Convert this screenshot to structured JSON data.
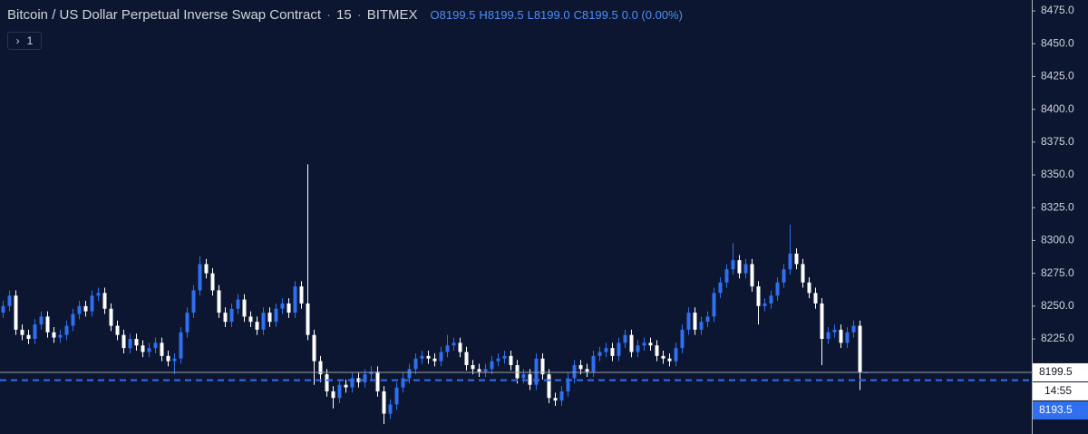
{
  "chart_data": {
    "type": "candlestick",
    "title": "Bitcoin / US Dollar Perpetual Inverse Swap Contract",
    "interval": "15",
    "exchange": "BITMEX",
    "status_line": [
      {
        "label": "O",
        "value": "8199.5"
      },
      {
        "label": "H",
        "value": "8199.5"
      },
      {
        "label": "L",
        "value": "8199.0"
      },
      {
        "label": "C",
        "value": "8199.5"
      }
    ],
    "change": "0.0 (0.00%)",
    "indicators_count": "1",
    "up_color": "#2f6ff0",
    "down_color": "#ffffff",
    "ylim": [
      8152.5,
      8483.3
    ],
    "yticks": [
      {
        "value": 8225,
        "label": "8225.0"
      },
      {
        "value": 8250,
        "label": "8250.0"
      },
      {
        "value": 8275,
        "label": "8275.0"
      },
      {
        "value": 8300,
        "label": "8300.0"
      },
      {
        "value": 8325,
        "label": "8325.0"
      },
      {
        "value": 8350,
        "label": "8350.0"
      },
      {
        "value": 8375,
        "label": "8375.0"
      },
      {
        "value": 8400,
        "label": "8400.0"
      },
      {
        "value": 8425,
        "label": "8425.0"
      },
      {
        "value": 8450,
        "label": "8450.0"
      },
      {
        "value": 8475,
        "label": "8475.0"
      }
    ],
    "last_price": 8199.5,
    "mark_price": 8193.5,
    "countdown": "14:55",
    "open": [
      8245,
      8250,
      8258,
      8232,
      8228,
      8225,
      8236,
      8242,
      8230,
      8226,
      8228,
      8235,
      8244,
      8250,
      8246,
      8258,
      8260,
      8248,
      8235,
      8228,
      8218,
      8225,
      8220,
      8215,
      8218,
      8222,
      8212,
      8208,
      8210,
      8230,
      8245,
      8262,
      8282,
      8275,
      8262,
      8245,
      8238,
      8248,
      8255,
      8242,
      8238,
      8232,
      8245,
      8238,
      8248,
      8252,
      8245,
      8265,
      8252,
      8228,
      8208,
      8198,
      8185,
      8180,
      8190,
      8188,
      8195,
      8192,
      8198,
      8200,
      8185,
      8168,
      8175,
      8188,
      8195,
      8202,
      8210,
      8212,
      8210,
      8208,
      8215,
      8220,
      8222,
      8215,
      8205,
      8202,
      8200,
      8202,
      8208,
      8210,
      8212,
      8205,
      8195,
      8198,
      8190,
      8210,
      8198,
      8180,
      8178,
      8185,
      8195,
      8205,
      8202,
      8200,
      8212,
      8215,
      8218,
      8212,
      8222,
      8228,
      8215,
      8220,
      8222,
      8220,
      8212,
      8210,
      8208,
      8218,
      8232,
      8245,
      8232,
      8238,
      8242,
      8260,
      8268,
      8278,
      8285,
      8275,
      8282,
      8265,
      8250,
      8252,
      8258,
      8268,
      8278,
      8290,
      8282,
      8268,
      8260,
      8252,
      8225,
      8230,
      8232,
      8222,
      8230,
      8235,
      8199.5
    ],
    "high": [
      8254,
      8262,
      8262,
      8236,
      8232,
      8240,
      8246,
      8246,
      8234,
      8232,
      8239,
      8248,
      8254,
      8254,
      8262,
      8264,
      8264,
      8252,
      8239,
      8232,
      8229,
      8229,
      8224,
      8222,
      8226,
      8226,
      8216,
      8214,
      8234,
      8249,
      8266,
      8288,
      8286,
      8279,
      8266,
      8249,
      8252,
      8259,
      8259,
      8246,
      8242,
      8249,
      8249,
      8252,
      8256,
      8256,
      8269,
      8269,
      8358,
      8232,
      8212,
      8202,
      8189,
      8194,
      8194,
      8199,
      8199,
      8202,
      8204,
      8204,
      8189,
      8179,
      8192,
      8199,
      8206,
      8214,
      8216,
      8216,
      8214,
      8219,
      8228,
      8226,
      8226,
      8219,
      8209,
      8206,
      8206,
      8212,
      8214,
      8216,
      8216,
      8209,
      8202,
      8202,
      8214,
      8214,
      8202,
      8184,
      8189,
      8199,
      8209,
      8209,
      8206,
      8216,
      8219,
      8222,
      8222,
      8226,
      8232,
      8232,
      8224,
      8226,
      8226,
      8224,
      8216,
      8214,
      8222,
      8236,
      8249,
      8249,
      8242,
      8246,
      8264,
      8272,
      8282,
      8298,
      8289,
      8286,
      8286,
      8269,
      8256,
      8262,
      8272,
      8282,
      8312,
      8294,
      8286,
      8272,
      8264,
      8256,
      8234,
      8236,
      8236,
      8234,
      8239,
      8239,
      8199.5
    ],
    "low": [
      8241,
      8246,
      8228,
      8224,
      8221,
      8221,
      8232,
      8226,
      8222,
      8222,
      8224,
      8231,
      8240,
      8242,
      8242,
      8254,
      8244,
      8231,
      8224,
      8214,
      8214,
      8216,
      8211,
      8211,
      8214,
      8208,
      8204,
      8198,
      8206,
      8226,
      8241,
      8258,
      8271,
      8258,
      8241,
      8234,
      8234,
      8244,
      8238,
      8234,
      8228,
      8228,
      8234,
      8234,
      8244,
      8241,
      8241,
      8248,
      8224,
      8190,
      8192,
      8181,
      8172,
      8176,
      8184,
      8184,
      8188,
      8188,
      8194,
      8181,
      8160,
      8164,
      8171,
      8184,
      8191,
      8198,
      8206,
      8206,
      8204,
      8204,
      8211,
      8216,
      8211,
      8201,
      8198,
      8196,
      8196,
      8198,
      8204,
      8206,
      8201,
      8191,
      8191,
      8186,
      8186,
      8194,
      8176,
      8174,
      8174,
      8181,
      8191,
      8198,
      8196,
      8196,
      8208,
      8211,
      8208,
      8208,
      8218,
      8211,
      8211,
      8216,
      8216,
      8208,
      8206,
      8204,
      8204,
      8214,
      8228,
      8228,
      8228,
      8234,
      8238,
      8256,
      8264,
      8274,
      8271,
      8271,
      8261,
      8236,
      8246,
      8248,
      8254,
      8264,
      8274,
      8278,
      8264,
      8256,
      8248,
      8205,
      8221,
      8226,
      8218,
      8218,
      8226,
      8186,
      8199.0
    ],
    "close": [
      8250,
      8258,
      8232,
      8228,
      8225,
      8236,
      8242,
      8230,
      8226,
      8228,
      8235,
      8244,
      8250,
      8246,
      8258,
      8260,
      8248,
      8235,
      8228,
      8218,
      8225,
      8220,
      8215,
      8218,
      8222,
      8212,
      8208,
      8210,
      8230,
      8245,
      8262,
      8282,
      8275,
      8262,
      8245,
      8238,
      8248,
      8255,
      8242,
      8238,
      8232,
      8245,
      8238,
      8248,
      8252,
      8245,
      8265,
      8252,
      8228,
      8208,
      8198,
      8185,
      8180,
      8190,
      8188,
      8195,
      8192,
      8198,
      8200,
      8185,
      8168,
      8175,
      8188,
      8195,
      8202,
      8210,
      8212,
      8210,
      8208,
      8215,
      8220,
      8222,
      8215,
      8205,
      8202,
      8200,
      8202,
      8208,
      8210,
      8212,
      8205,
      8195,
      8198,
      8190,
      8210,
      8198,
      8180,
      8178,
      8185,
      8195,
      8205,
      8202,
      8200,
      8212,
      8215,
      8218,
      8212,
      8222,
      8228,
      8215,
      8220,
      8222,
      8220,
      8212,
      8210,
      8208,
      8218,
      8232,
      8245,
      8232,
      8238,
      8242,
      8260,
      8268,
      8278,
      8285,
      8275,
      8282,
      8265,
      8250,
      8252,
      8258,
      8268,
      8278,
      8290,
      8282,
      8268,
      8260,
      8252,
      8225,
      8230,
      8232,
      8222,
      8230,
      8235,
      8199.5,
      8199.5
    ]
  }
}
